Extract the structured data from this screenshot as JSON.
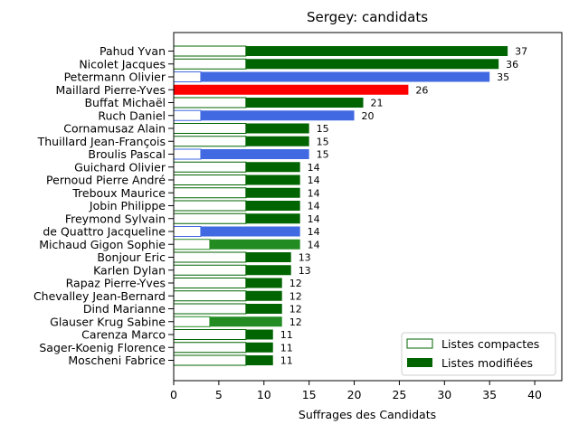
{
  "chart_data": {
    "type": "bar",
    "orientation": "horizontal",
    "stacked": true,
    "title": "Sergey: candidats",
    "xlabel": "Suffrages des Candidats",
    "ylabel": "",
    "xlim": [
      0,
      43
    ],
    "xticks": [
      0,
      5,
      10,
      15,
      20,
      25,
      30,
      35,
      40
    ],
    "grid": false,
    "legend_position": "lower-right",
    "legend": [
      {
        "label": "Listes compactes",
        "style": "outline",
        "color": "#006400"
      },
      {
        "label": "Listes modifiées",
        "style": "filled",
        "color": "#006400"
      }
    ],
    "categories": [
      "Pahud Yvan",
      "Nicolet Jacques",
      "Petermann Olivier",
      "Maillard Pierre-Yves",
      "Buffat Michaël",
      "Ruch Daniel",
      "Cornamusaz Alain",
      "Thuillard Jean-François",
      "Broulis Pascal",
      "Guichard Olivier",
      "Pernoud Pierre André",
      "Treboux Maurice",
      "Jobin Philippe",
      "Freymond Sylvain",
      "de Quattro Jacqueline",
      "Michaud Gigon Sophie",
      "Bonjour Eric",
      "Karlen Dylan",
      "Rapaz Pierre-Yves",
      "Chevalley Jean-Bernard",
      "Dind Marianne",
      "Glauser Krug Sabine",
      "Carenza Marco",
      "Sager-Koenig Florence",
      "Moscheni Fabrice"
    ],
    "series": [
      {
        "name": "Listes compactes",
        "values": [
          8,
          8,
          3,
          0,
          8,
          3,
          8,
          8,
          3,
          8,
          8,
          8,
          8,
          8,
          3,
          4,
          8,
          8,
          8,
          8,
          8,
          4,
          8,
          8,
          8
        ]
      },
      {
        "name": "Listes modifiées",
        "values": [
          29,
          28,
          32,
          26,
          13,
          17,
          7,
          7,
          12,
          6,
          6,
          6,
          6,
          6,
          11,
          10,
          5,
          5,
          4,
          4,
          4,
          8,
          3,
          3,
          3
        ]
      }
    ],
    "totals": [
      37,
      36,
      35,
      26,
      21,
      20,
      15,
      15,
      15,
      14,
      14,
      14,
      14,
      14,
      14,
      14,
      13,
      13,
      12,
      12,
      12,
      12,
      11,
      11,
      11
    ],
    "bar_colors": [
      "#006400",
      "#006400",
      "#4169e1",
      "#ff0000",
      "#006400",
      "#4169e1",
      "#006400",
      "#006400",
      "#4169e1",
      "#006400",
      "#006400",
      "#006400",
      "#006400",
      "#006400",
      "#4169e1",
      "#228b22",
      "#006400",
      "#006400",
      "#006400",
      "#006400",
      "#006400",
      "#228b22",
      "#006400",
      "#006400",
      "#006400"
    ]
  }
}
